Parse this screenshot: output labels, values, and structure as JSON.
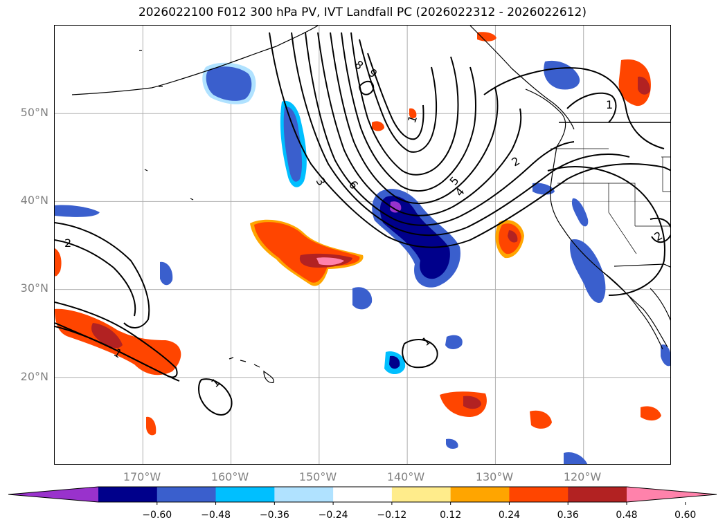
{
  "title": "2026022100 F012 300 hPa PV, IVT Landfall PC (2026022312 - 2026022612)",
  "map": {
    "lat_labels": [
      "50°N",
      "40°N",
      "30°N",
      "20°N"
    ],
    "lon_labels": [
      "170°W",
      "160°W",
      "150°W",
      "140°W",
      "130°W",
      "120°W"
    ],
    "extent": {
      "lon": [
        -180,
        -110
      ],
      "lat": [
        10,
        60
      ]
    },
    "gridlines": true,
    "gridline_lons": [
      -170,
      -160,
      -150,
      -140,
      -130,
      -120
    ],
    "gridline_lats": [
      50,
      40,
      30,
      20
    ],
    "contour_labels": [
      "8",
      "9",
      "1",
      "3",
      "6",
      "5",
      "4",
      "2",
      "1",
      "2",
      "2",
      "1",
      "1",
      "1"
    ]
  },
  "colorbar": {
    "ticks": [
      "−0.60",
      "−0.48",
      "−0.36",
      "−0.24",
      "−0.12",
      "0.12",
      "0.24",
      "0.36",
      "0.48",
      "0.60"
    ],
    "colors": [
      "#9932cc",
      "#00008b",
      "#3a5fcd",
      "#00bfff",
      "#b0e2ff",
      "#ffffff",
      "#ffec8b",
      "#ffa500",
      "#ff4500",
      "#b22222",
      "#ff82ab"
    ]
  }
}
